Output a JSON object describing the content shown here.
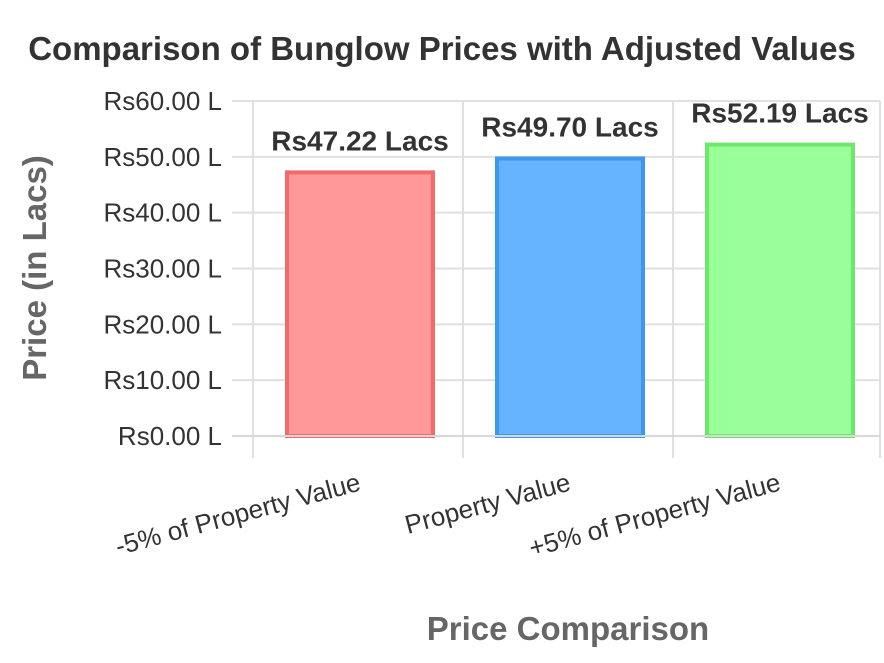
{
  "chart_data": {
    "type": "bar",
    "title": "Comparison of Bunglow Prices with Adjusted Values",
    "xlabel": "Price Comparison",
    "ylabel": "Price (in Lacs)",
    "categories": [
      "-5% of Property Value",
      "Property Value",
      "+5% of Property Value"
    ],
    "values": [
      47.22,
      49.7,
      52.19
    ],
    "data_labels": [
      "Rs47.22 Lacs",
      "Rs49.70 Lacs",
      "Rs52.19 Lacs"
    ],
    "ylim": [
      0,
      60
    ],
    "y_ticks": [
      {
        "value": 0,
        "label": "Rs0.00 L"
      },
      {
        "value": 10,
        "label": "Rs10.00 L"
      },
      {
        "value": 20,
        "label": "Rs20.00 L"
      },
      {
        "value": 30,
        "label": "Rs30.00 L"
      },
      {
        "value": 40,
        "label": "Rs40.00 L"
      },
      {
        "value": 50,
        "label": "Rs50.00 L"
      },
      {
        "value": 60,
        "label": "Rs60.00 L"
      }
    ],
    "bar_fill_colors": [
      "#ff9999",
      "#66b3ff",
      "#99ff99"
    ],
    "bar_edge_colors": [
      "#f06c6c",
      "#3d97ef",
      "#6de86d"
    ],
    "grid": true,
    "legend": "none"
  }
}
